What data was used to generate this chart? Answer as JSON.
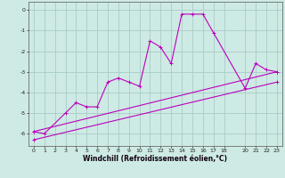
{
  "title": "",
  "xlabel": "Windchill (Refroidissement éolien,°C)",
  "background_color": "#ceeae4",
  "grid_color": "#a8ccc8",
  "line_color": "#bb00bb",
  "xlim": [
    -0.5,
    23.5
  ],
  "ylim": [
    -6.6,
    0.4
  ],
  "yticks": [
    0,
    -1,
    -2,
    -3,
    -4,
    -5,
    -6
  ],
  "xticks": [
    0,
    1,
    2,
    3,
    4,
    5,
    6,
    7,
    8,
    9,
    10,
    11,
    12,
    13,
    14,
    15,
    16,
    17,
    18,
    20,
    21,
    22,
    23
  ],
  "series1_x": [
    0,
    1,
    3,
    4,
    5,
    6,
    7,
    8,
    9,
    10,
    11,
    12,
    13,
    14,
    15,
    16,
    17,
    20,
    21,
    22,
    23
  ],
  "series1_y": [
    -5.9,
    -6.0,
    -5.0,
    -4.5,
    -4.7,
    -4.7,
    -3.5,
    -3.3,
    -3.5,
    -3.7,
    -1.5,
    -1.8,
    -2.6,
    -0.2,
    -0.2,
    -0.2,
    -1.1,
    -3.8,
    -2.6,
    -2.9,
    -3.0
  ],
  "series2_x": [
    0,
    23
  ],
  "series2_y": [
    -5.9,
    -3.0
  ],
  "series3_x": [
    0,
    23
  ],
  "series3_y": [
    -6.3,
    -3.5
  ],
  "marker_size": 2.5,
  "line_width": 0.8,
  "xlabel_fontsize": 5.5,
  "tick_fontsize": 4.5
}
